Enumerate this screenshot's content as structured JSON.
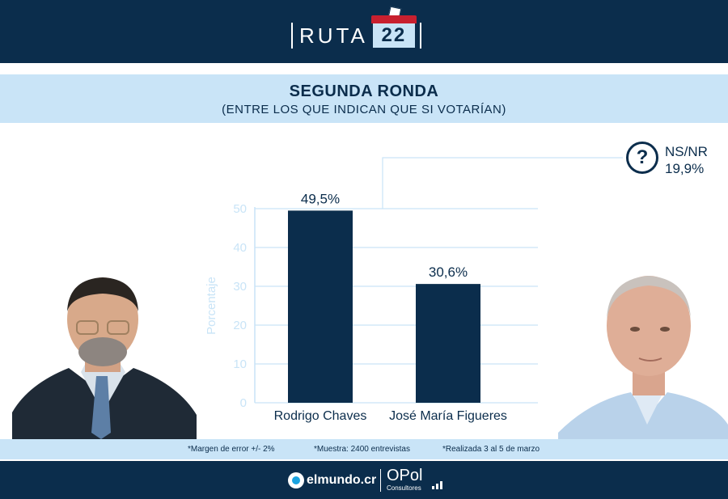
{
  "brand": {
    "word": "RUTA",
    "number": "22"
  },
  "title": {
    "main": "SEGUNDA RONDA",
    "sub": "(ENTRE LOS QUE INDICAN QUE SI VOTARÍAN)"
  },
  "nsnr": {
    "label": "NS/NR",
    "value": "19,9%",
    "icon": "question-icon"
  },
  "colors": {
    "navy": "#0b2d4c",
    "light_blue": "#c9e4f7",
    "axis": "#c9e4f7",
    "accent_red": "#c8202f"
  },
  "chart_data": {
    "type": "bar",
    "categories": [
      "Rodrigo Chaves",
      "José María Figueres"
    ],
    "values": [
      49.5,
      30.6
    ],
    "data_labels": [
      "49,5%",
      "30,6%"
    ],
    "ylabel": "Porcentaje",
    "ylim": [
      0,
      50
    ],
    "yticks": [
      0,
      10,
      20,
      30,
      40,
      50
    ],
    "grid": true
  },
  "notes": {
    "margin": "*Margen de error +/- 2%",
    "sample": "*Muestra: 2400 entrevistas",
    "dates": "*Realizada 3 al 5 de marzo"
  },
  "footer": {
    "logo1": "elmundo.cr",
    "logo2": "OPol",
    "logo2_sub": "Consultores"
  }
}
